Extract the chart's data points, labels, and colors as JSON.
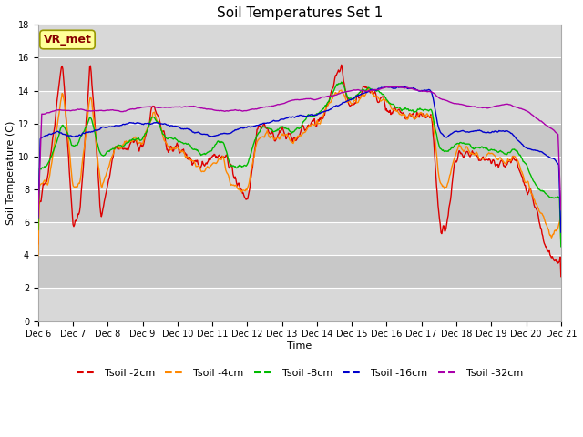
{
  "title": "Soil Temperatures Set 1",
  "xlabel": "Time",
  "ylabel": "Soil Temperature (C)",
  "ylim": [
    0,
    18
  ],
  "x_tick_labels": [
    "Dec 6",
    "Dec 7",
    "Dec 8",
    "Dec 9",
    "Dec 10",
    "Dec 11",
    "Dec 12",
    "Dec 13",
    "Dec 14",
    "Dec 15",
    "Dec 16",
    "Dec 17",
    "Dec 18",
    "Dec 19",
    "Dec 20",
    "Dec 21"
  ],
  "series_colors": [
    "#dd0000",
    "#ff8800",
    "#00bb00",
    "#0000cc",
    "#aa00aa"
  ],
  "series_labels": [
    "Tsoil -2cm",
    "Tsoil -4cm",
    "Tsoil -8cm",
    "Tsoil -16cm",
    "Tsoil -32cm"
  ],
  "annotation_text": "VR_met",
  "annotation_box_facecolor": "#ffff99",
  "annotation_box_edgecolor": "#999900",
  "annotation_text_color": "#880000",
  "title_fontsize": 11,
  "axis_label_fontsize": 8,
  "tick_fontsize": 7,
  "legend_fontsize": 8,
  "fig_facecolor": "#ffffff",
  "plot_facecolor": "#cccccc",
  "band_colors": [
    "#d8d8d8",
    "#c8c8c8"
  ],
  "grid_color": "#ffffff",
  "line_width": 1.0
}
